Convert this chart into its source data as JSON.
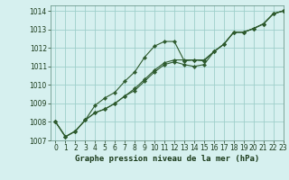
{
  "title": "Graphe pression niveau de la mer (hPa)",
  "background_color": "#d6f0ef",
  "grid_color": "#9ecfca",
  "line_color": "#2d5a2d",
  "marker_color": "#2d5a2d",
  "xlim": [
    -0.5,
    23
  ],
  "ylim": [
    1007,
    1014.3
  ],
  "xticks": [
    0,
    1,
    2,
    3,
    4,
    5,
    6,
    7,
    8,
    9,
    10,
    11,
    12,
    13,
    14,
    15,
    16,
    17,
    18,
    19,
    20,
    21,
    22,
    23
  ],
  "yticks": [
    1007,
    1008,
    1009,
    1010,
    1011,
    1012,
    1013,
    1014
  ],
  "series1_x": [
    0,
    1,
    2,
    3,
    4,
    5,
    6,
    7,
    8,
    9,
    10,
    11,
    12,
    13,
    14,
    15,
    16,
    17,
    18,
    19,
    20,
    21,
    22,
    23
  ],
  "series1_y": [
    1008.0,
    1007.2,
    1007.5,
    1008.1,
    1008.9,
    1009.3,
    1009.6,
    1010.2,
    1010.7,
    1011.5,
    1012.1,
    1012.35,
    1012.35,
    1011.3,
    1011.35,
    1011.3,
    1011.8,
    1012.2,
    1012.85,
    1012.85,
    1013.05,
    1013.3,
    1013.85,
    1014.0
  ],
  "series2_x": [
    0,
    1,
    2,
    3,
    4,
    5,
    6,
    7,
    8,
    9,
    10,
    11,
    12,
    13,
    14,
    15,
    16,
    17,
    18,
    19,
    20,
    21,
    22,
    23
  ],
  "series2_y": [
    1008.0,
    1007.2,
    1007.5,
    1008.1,
    1008.5,
    1008.7,
    1009.0,
    1009.4,
    1009.8,
    1010.3,
    1010.8,
    1011.2,
    1011.35,
    1011.35,
    1011.35,
    1011.35,
    1011.8,
    1012.2,
    1012.85,
    1012.85,
    1013.05,
    1013.3,
    1013.85,
    1014.0
  ],
  "series3_x": [
    0,
    1,
    2,
    3,
    4,
    5,
    6,
    7,
    8,
    9,
    10,
    11,
    12,
    13,
    14,
    15,
    16,
    17,
    18,
    19,
    20,
    21,
    22,
    23
  ],
  "series3_y": [
    1008.0,
    1007.2,
    1007.5,
    1008.1,
    1008.5,
    1008.7,
    1009.0,
    1009.4,
    1009.7,
    1010.2,
    1010.7,
    1011.1,
    1011.25,
    1011.1,
    1011.0,
    1011.1,
    1011.8,
    1012.2,
    1012.85,
    1012.85,
    1013.05,
    1013.3,
    1013.85,
    1014.0
  ],
  "xlabel_fontsize": 6.5,
  "tick_fontsize": 5.5
}
